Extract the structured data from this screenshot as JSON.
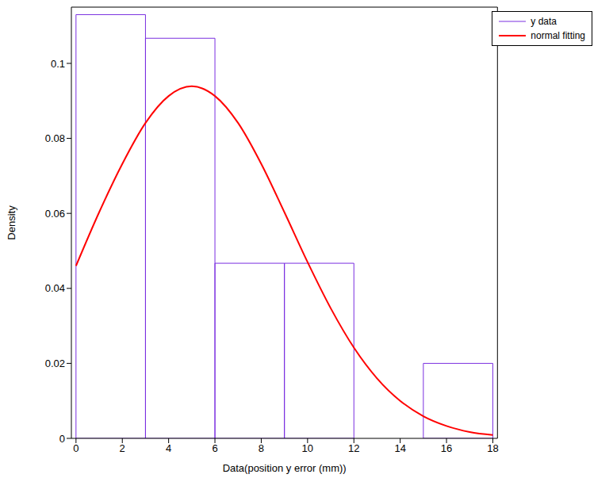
{
  "chart_data": {
    "type": "histogram",
    "x_label": "Data(position y error (mm))",
    "y_label": "Density",
    "xlim": [
      -0.2,
      18.2
    ],
    "xticks": [
      0,
      2,
      4,
      6,
      8,
      10,
      12,
      14,
      16,
      18
    ],
    "ylim": [
      0,
      0.115
    ],
    "yticks": [
      0,
      0.02,
      0.04,
      0.06,
      0.08,
      0.1
    ],
    "grid": false,
    "legend": "upper right",
    "series": [
      {
        "name": "y data",
        "type": "histogram",
        "color": "#7a2ee0",
        "bins": [
          0,
          3,
          6,
          9,
          12,
          15,
          18
        ],
        "values": [
          0.113,
          0.1067,
          0.0467,
          0.0467,
          0,
          0.02
        ]
      },
      {
        "name": "normal fitting",
        "type": "line",
        "color": "#ff0000",
        "x": [
          0,
          1,
          2,
          3,
          4,
          5,
          6,
          7,
          8,
          9,
          10,
          11,
          12,
          13,
          14,
          15,
          16,
          17,
          18
        ],
        "values": [
          0.046,
          0.0603,
          0.0732,
          0.0841,
          0.0913,
          0.0939,
          0.0913,
          0.0841,
          0.0732,
          0.0603,
          0.047,
          0.0347,
          0.0242,
          0.016,
          0.01,
          0.0059,
          0.0033,
          0.0017,
          0.0009
        ]
      }
    ]
  }
}
